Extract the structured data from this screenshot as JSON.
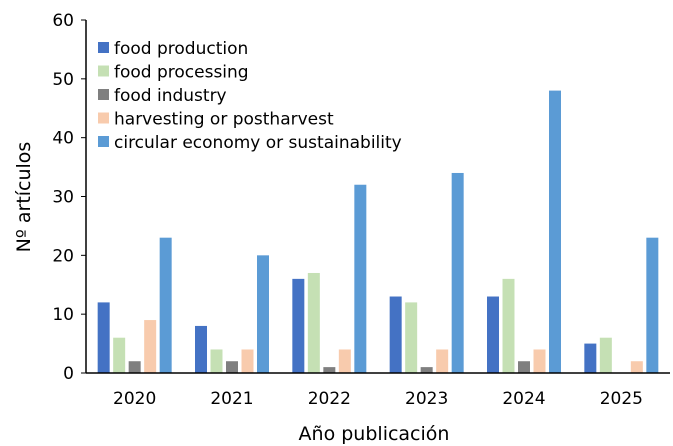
{
  "chart_data": {
    "type": "bar",
    "title": "",
    "xlabel": "Año publicación",
    "ylabel": "Nº artículos",
    "ylim": [
      0,
      60
    ],
    "yticks": [
      0,
      10,
      20,
      30,
      40,
      50,
      60
    ],
    "categories": [
      "2020",
      "2021",
      "2022",
      "2023",
      "2024",
      "2025"
    ],
    "grid": false,
    "legend_position": "top-left",
    "series": [
      {
        "name": "food production",
        "color": "#4472C4",
        "values": [
          12,
          8,
          16,
          13,
          13,
          5
        ]
      },
      {
        "name": "food processing",
        "color": "#C5E0B4",
        "values": [
          6,
          4,
          17,
          12,
          16,
          6
        ]
      },
      {
        "name": "food industry",
        "color": "#7F7F7F",
        "values": [
          2,
          2,
          1,
          1,
          2,
          0
        ]
      },
      {
        "name": "harvesting or postharvest",
        "color": "#F8CBAD",
        "values": [
          9,
          4,
          4,
          4,
          4,
          2
        ]
      },
      {
        "name": "circular economy or sustainability",
        "color": "#5B9BD5",
        "values": [
          23,
          20,
          32,
          34,
          48,
          23
        ]
      }
    ]
  }
}
